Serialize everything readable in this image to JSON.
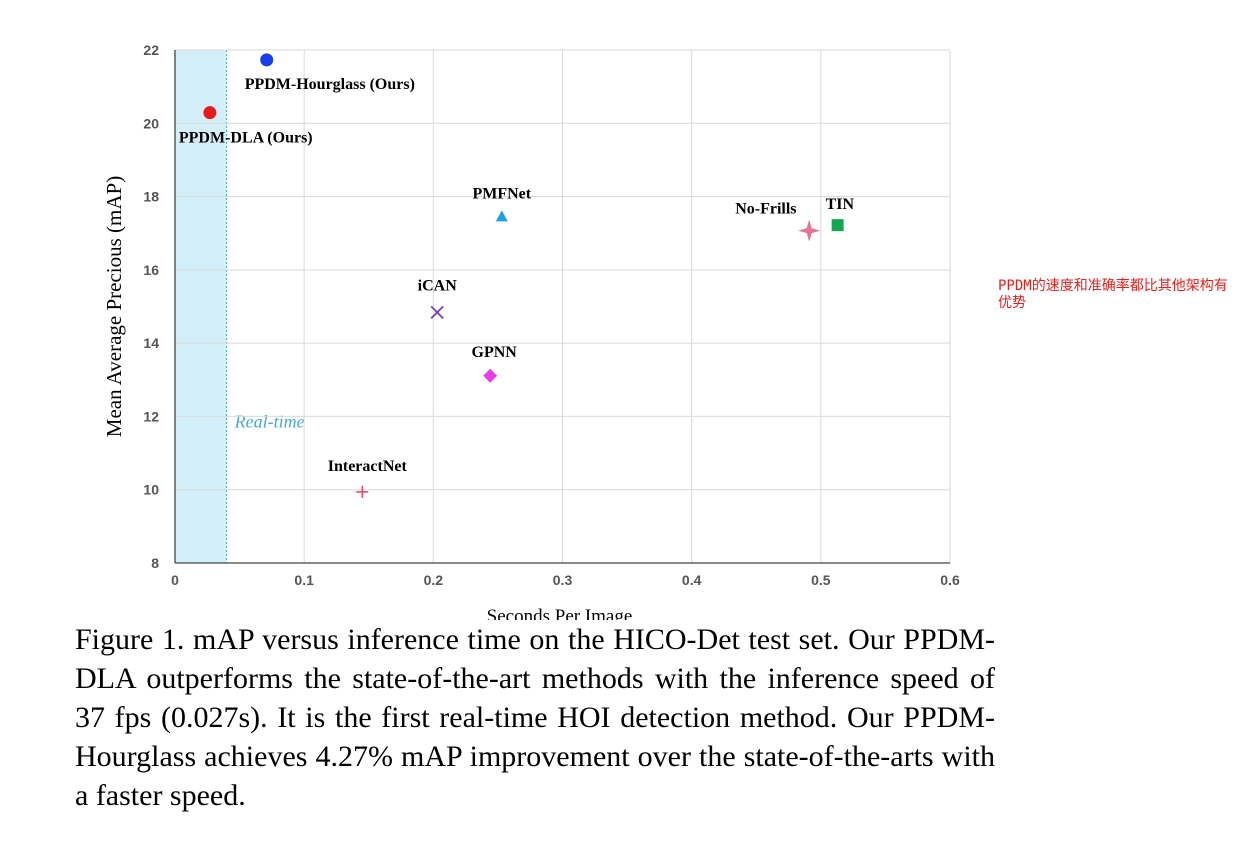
{
  "chart_data": {
    "type": "scatter",
    "title": "",
    "xlabel": "Seconds Per Image",
    "ylabel": "Mean Average Precious (mAP)",
    "xlim": [
      0,
      0.6
    ],
    "ylim": [
      8,
      22
    ],
    "xticks": [
      "0",
      "0.1",
      "0.2",
      "0.3",
      "0.4",
      "0.5",
      "0.6"
    ],
    "yticks": [
      "8",
      "10",
      "12",
      "14",
      "16",
      "18",
      "20",
      "22"
    ],
    "grid": true,
    "realtime_region": {
      "x_max": 0.04,
      "label": "Real-time",
      "color": "#d3eef9"
    },
    "points": [
      {
        "name": "PPDM-Hourglass (Ours)",
        "x": 0.071,
        "y": 21.73,
        "marker": "circle",
        "color": "#1a3ee8"
      },
      {
        "name": "PPDM-DLA (Ours)",
        "x": 0.027,
        "y": 20.29,
        "marker": "circle",
        "color": "#e41a1c"
      },
      {
        "name": "PMFNet",
        "x": 0.253,
        "y": 17.46,
        "marker": "triangle",
        "color": "#1ba1e2"
      },
      {
        "name": "No-Frills",
        "x": 0.491,
        "y": 17.07,
        "marker": "star4",
        "color": "#e37597"
      },
      {
        "name": "TIN",
        "x": 0.513,
        "y": 17.22,
        "marker": "square",
        "color": "#15a652"
      },
      {
        "name": "iCAN",
        "x": 0.203,
        "y": 14.84,
        "marker": "x",
        "color": "#7b3fa7"
      },
      {
        "name": "GPNN",
        "x": 0.244,
        "y": 13.11,
        "marker": "diamond",
        "color": "#e83ee8"
      },
      {
        "name": "InteractNet",
        "x": 0.145,
        "y": 9.94,
        "marker": "plus",
        "color": "#e04f5f"
      }
    ]
  },
  "caption": "Figure 1. mAP versus inference time on the HICO-Det test set. Our PPDM-DLA outperforms the state-of-the-art methods with the inference speed of 37 fps (0.027s). It is the first real-time HOI detection method.  Our PPDM-Hourglass achieves 4.27% mAP improvement over the state-of-the-arts with a faster speed.",
  "annotation": "PPDM的速度和准确率都比其他架构有优势"
}
